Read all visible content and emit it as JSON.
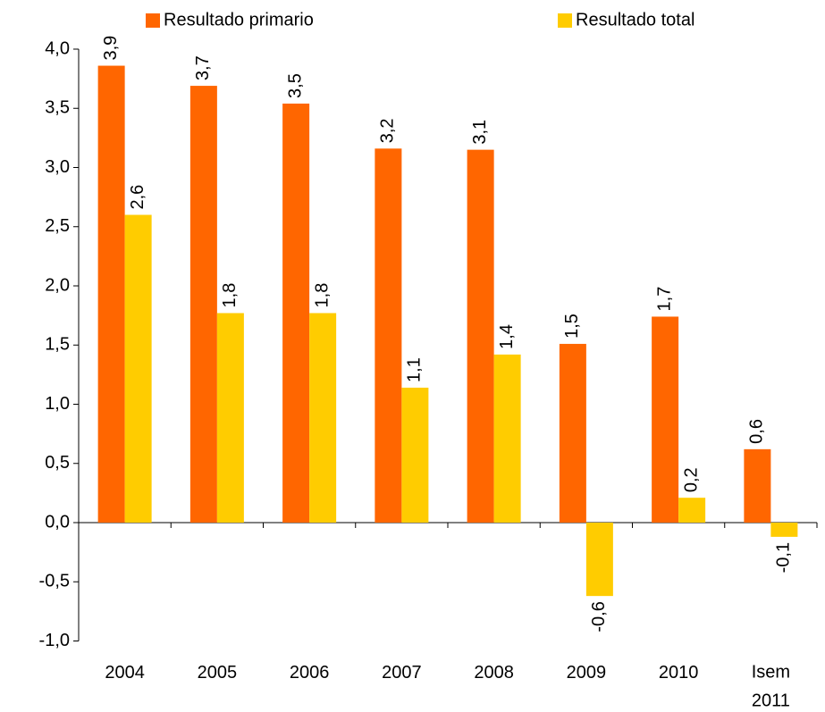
{
  "chart_data": {
    "type": "bar",
    "categories": [
      "2004",
      "2005",
      "2006",
      "2007",
      "2008",
      "2009",
      "2010",
      "Isem 2011"
    ],
    "series": [
      {
        "name": "Resultado primario",
        "color": "#ff6600",
        "values": [
          3.86,
          3.69,
          3.54,
          3.16,
          3.15,
          1.51,
          1.74,
          0.62
        ],
        "value_labels": [
          "3,9",
          "3,7",
          "3,5",
          "3,2",
          "3,1",
          "1,5",
          "1,7",
          "0,6"
        ]
      },
      {
        "name": "Resultado total",
        "color": "#ffcc00",
        "values": [
          2.6,
          1.77,
          1.77,
          1.14,
          1.42,
          -0.62,
          0.21,
          -0.12
        ],
        "value_labels": [
          "2,6",
          "1,8",
          "1,8",
          "1,1",
          "1,4",
          "-0,6",
          "0,2",
          "-0,1"
        ]
      }
    ],
    "ylim": [
      -1,
      4
    ],
    "yticks": [
      {
        "value": -1,
        "label": "-1,0"
      },
      {
        "value": -0.5,
        "label": "-0,5"
      },
      {
        "value": 0,
        "label": "0,0"
      },
      {
        "value": 0.5,
        "label": "0,5"
      },
      {
        "value": 1,
        "label": "1,0"
      },
      {
        "value": 1.5,
        "label": "1,5"
      },
      {
        "value": 2,
        "label": "2,0"
      },
      {
        "value": 2.5,
        "label": "2,5"
      },
      {
        "value": 3,
        "label": "3,0"
      },
      {
        "value": 3.5,
        "label": "3,5"
      },
      {
        "value": 4,
        "label": "4,0"
      }
    ],
    "grid": false,
    "legend": "top"
  }
}
